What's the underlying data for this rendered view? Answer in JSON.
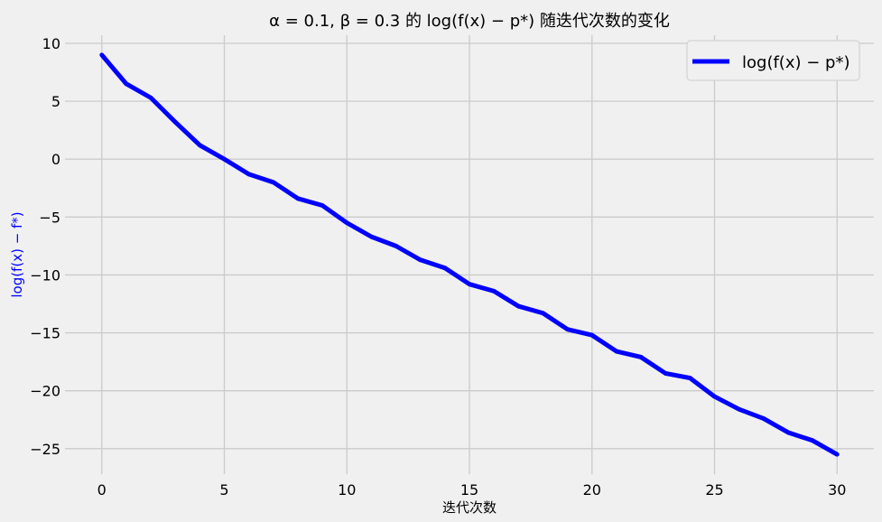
{
  "colors": {
    "background": "#f0f0f0",
    "grid": "#cbcbcb",
    "legend_border": "#cccccc",
    "ylabel": "#0000ff"
  },
  "chart_data": {
    "type": "line",
    "title": "α = 0.1, β = 0.3 的 log(f(x) − p*) 随迭代次数的变化",
    "xlabel": "迭代次数",
    "ylabel": "log(f(x) − f*)",
    "x": [
      0,
      1,
      2,
      3,
      4,
      5,
      6,
      7,
      8,
      9,
      10,
      11,
      12,
      13,
      14,
      15,
      16,
      17,
      18,
      19,
      20,
      21,
      22,
      23,
      24,
      25,
      26,
      27,
      28,
      29,
      30
    ],
    "series": [
      {
        "name": "log(f(x) − p*)",
        "color": "#0000ff",
        "values": [
          9.0,
          6.5,
          5.3,
          3.2,
          1.2,
          0.0,
          -1.3,
          -2.0,
          -3.4,
          -4.0,
          -5.5,
          -6.7,
          -7.5,
          -8.7,
          -9.4,
          -10.8,
          -11.4,
          -12.7,
          -13.3,
          -14.7,
          -15.2,
          -16.6,
          -17.1,
          -18.5,
          -18.9,
          -20.5,
          -21.6,
          -22.4,
          -23.6,
          -24.3,
          -25.5
        ]
      }
    ],
    "xticks": [
      0,
      5,
      10,
      15,
      20,
      25,
      30
    ],
    "xtick_labels": [
      "0",
      "5",
      "10",
      "15",
      "20",
      "25",
      "30"
    ],
    "yticks": [
      10,
      5,
      0,
      -5,
      -10,
      -15,
      -20,
      -25
    ],
    "ytick_labels": [
      "10",
      "5",
      "0",
      "−5",
      "−10",
      "−15",
      "−20",
      "−25"
    ],
    "xlim": [
      -1.5,
      31.5
    ],
    "ylim": [
      -27.2,
      10.7
    ],
    "grid": true,
    "legend_position": "top-right"
  }
}
